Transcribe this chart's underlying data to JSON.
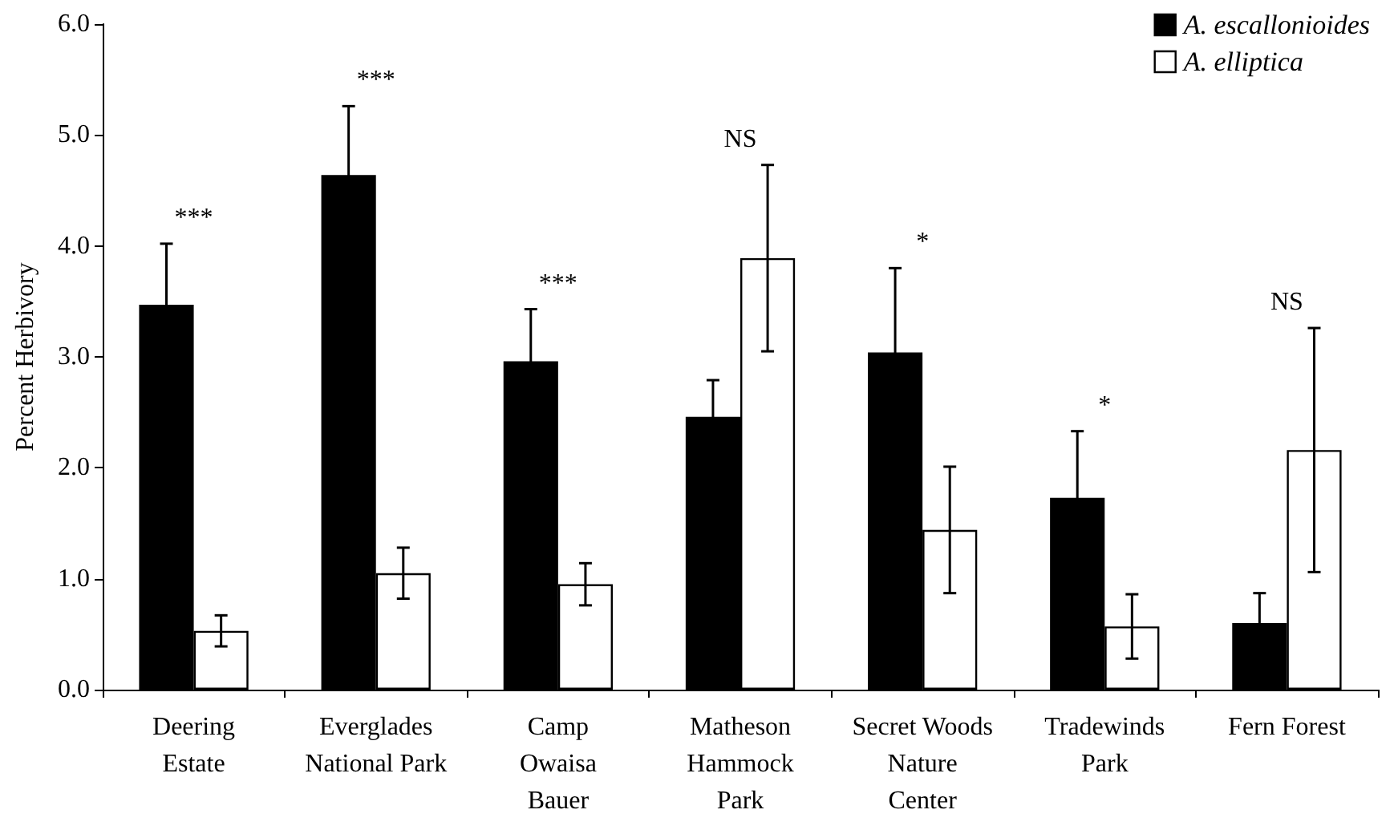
{
  "chart_data": {
    "type": "bar",
    "ylabel": "Percent Herbivory",
    "categories": [
      "Deering\nEstate",
      "Everglades\nNational Park",
      "Camp\nOwaisa\nBauer",
      "Matheson\nHammock\nPark",
      "Secret Woods\nNature\nCenter",
      "Tradewinds\nPark",
      "Fern Forest"
    ],
    "series": [
      {
        "name": "A. escallonioides",
        "color": "#000000",
        "values": [
          3.47,
          4.64,
          2.96,
          2.46,
          3.04,
          1.73,
          0.6
        ],
        "errors": [
          0.55,
          0.62,
          0.47,
          0.33,
          0.76,
          0.6,
          0.27
        ]
      },
      {
        "name": "A. elliptica",
        "color": "#ffffff",
        "values": [
          0.53,
          1.05,
          0.95,
          3.89,
          1.44,
          0.57,
          2.16
        ],
        "errors": [
          0.14,
          0.23,
          0.19,
          0.84,
          0.57,
          0.29,
          1.1
        ]
      }
    ],
    "ylim": [
      0,
      6
    ],
    "yticks": [
      {
        "value": 0,
        "label": "0.0"
      },
      {
        "value": 1,
        "label": "1.0"
      },
      {
        "value": 2,
        "label": "2.0"
      },
      {
        "value": 3,
        "label": "3.0"
      },
      {
        "value": 4,
        "label": "4.0"
      },
      {
        "value": 5,
        "label": "5.0"
      },
      {
        "value": 6,
        "label": "6.0"
      }
    ],
    "annotations": [
      "***",
      "***",
      "***",
      "NS",
      "*",
      "*",
      "NS"
    ],
    "grid": false,
    "legend": "top right"
  }
}
